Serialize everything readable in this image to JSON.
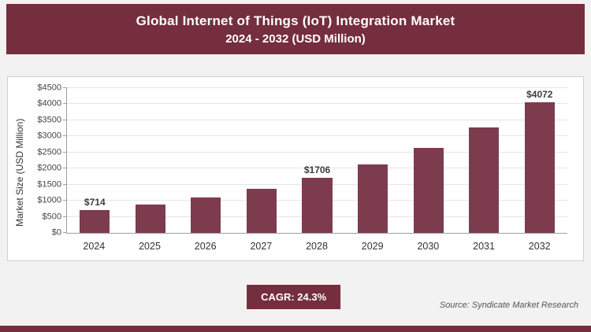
{
  "header": {
    "title_line1": "Global Internet of Things (IoT) Integration Market",
    "title_line2": "2024 - 2032 (USD Million)"
  },
  "chart_data": {
    "type": "bar",
    "title": "Global Internet of Things (IoT) Integration Market 2024 - 2032 (USD Million)",
    "categories": [
      "2024",
      "2025",
      "2026",
      "2027",
      "2028",
      "2029",
      "2030",
      "2031",
      "2032"
    ],
    "values": [
      714,
      888,
      1103,
      1371,
      1706,
      2120,
      2636,
      3276,
      4072
    ],
    "bar_labels": [
      "$714",
      "",
      "",
      "",
      "$1706",
      "",
      "",
      "",
      "$4072"
    ],
    "xlabel": "",
    "ylabel": "Market Size (USD Million)",
    "ylim": [
      0,
      4500
    ],
    "ytick_step": 500,
    "ytick_labels": [
      "$0",
      "$500",
      "$1000",
      "$1500",
      "$2000",
      "$2500",
      "$3000",
      "$3500",
      "$4000",
      "$4500"
    ],
    "grid": true,
    "legend": "none"
  },
  "footer": {
    "cagr_label": "CAGR: 24.3%",
    "source": "Source: Syndicate Market Research"
  },
  "colors": {
    "maroon": "#752e3e",
    "bar": "#7d3c4e",
    "grid": "#e5e5e5",
    "axis": "#9e9e9e",
    "page_bg": "#f3f2f2",
    "card_bg": "#ffffff"
  }
}
